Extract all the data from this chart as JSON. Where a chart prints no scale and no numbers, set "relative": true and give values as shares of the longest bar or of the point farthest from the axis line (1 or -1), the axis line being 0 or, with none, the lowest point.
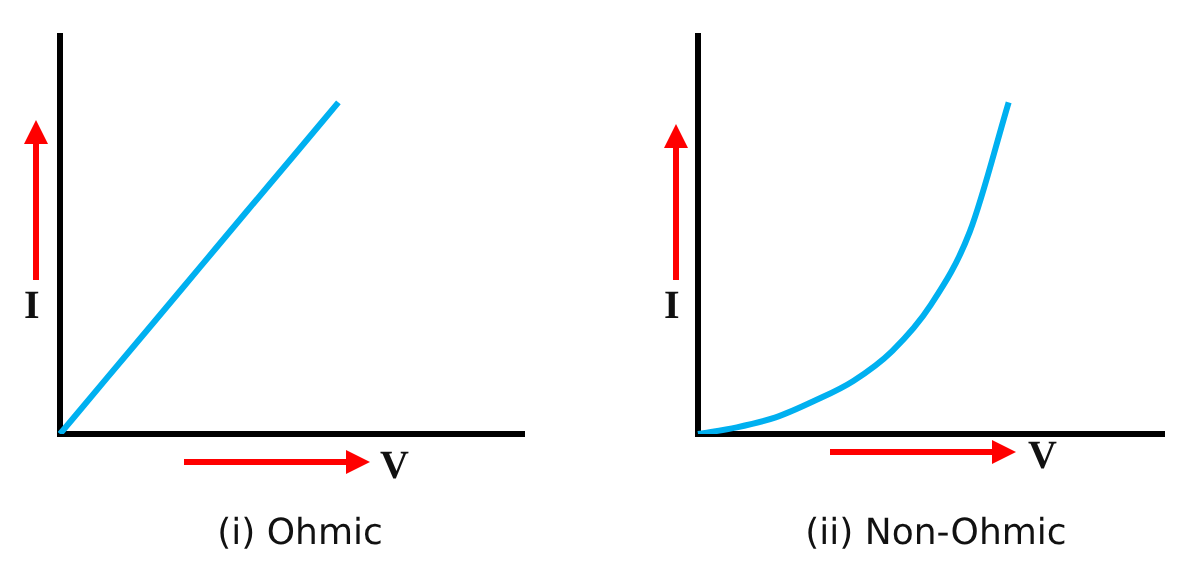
{
  "chart_data": [
    {
      "type": "line",
      "title": "(i) Ohmic",
      "xlabel": "V",
      "ylabel": "I",
      "relative": true,
      "grid": false,
      "legend": false,
      "marker": "none",
      "categories": [
        null,
        null,
        null,
        null,
        null,
        null,
        null,
        null,
        null,
        null,
        null
      ],
      "series": [
        {
          "color": "#00b0f0",
          "values": [
            0,
            0.167,
            0.333,
            0.5,
            0.667,
            0.833,
            1,
            null,
            null,
            null,
            null
          ]
        }
      ]
    },
    {
      "type": "line",
      "title": "(ii) Non-Ohmic",
      "xlabel": "V",
      "ylabel": "I",
      "relative": true,
      "grid": false,
      "legend": false,
      "marker": "none",
      "categories": [
        null,
        null,
        null,
        null,
        null,
        null,
        null,
        null,
        null,
        null,
        null,
        null,
        null
      ],
      "series": [
        {
          "color": "#00b0f0",
          "values": [
            0,
            0.02,
            0.05,
            0.1,
            0.16,
            0.25,
            0.39,
            0.61,
            1,
            null,
            null,
            null,
            null
          ]
        }
      ]
    }
  ]
}
